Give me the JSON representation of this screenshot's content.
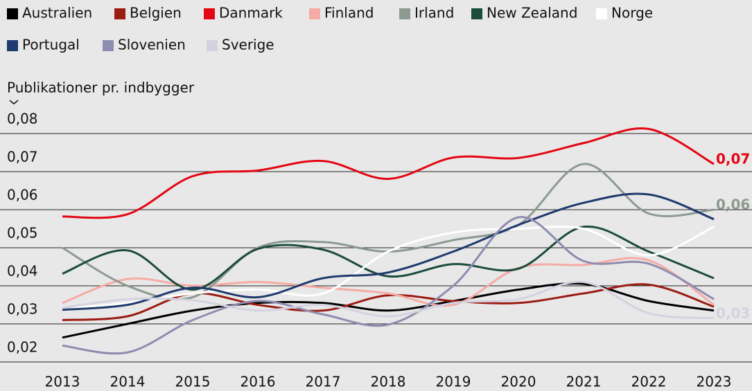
{
  "chart_data": {
    "type": "line",
    "y_axis_label": "Publikationer pr. indbygger",
    "categories": [
      "2013",
      "2014",
      "2015",
      "2016",
      "2017",
      "2018",
      "2019",
      "2020",
      "2021",
      "2022",
      "2023"
    ],
    "ylim": [
      0.02,
      0.08
    ],
    "yticks": [
      {
        "value": 0.02,
        "label": "0,02"
      },
      {
        "value": 0.03,
        "label": "0,03"
      },
      {
        "value": 0.04,
        "label": "0,04"
      },
      {
        "value": 0.05,
        "label": "0,05"
      },
      {
        "value": 0.06,
        "label": "0,06"
      },
      {
        "value": 0.07,
        "label": "0,07"
      },
      {
        "value": 0.08,
        "label": "0,08"
      }
    ],
    "grid": true,
    "series": [
      {
        "name": "Australien",
        "color": "#000000",
        "values": [
          0.0264,
          0.03,
          0.0335,
          0.0355,
          0.0355,
          0.0335,
          0.036,
          0.039,
          0.0405,
          0.036,
          0.0335
        ]
      },
      {
        "name": "Belgien",
        "color": "#9b1c13",
        "values": [
          0.031,
          0.032,
          0.038,
          0.035,
          0.0335,
          0.0375,
          0.036,
          0.0355,
          0.038,
          0.0403,
          0.0345
        ]
      },
      {
        "name": "Danmark",
        "color": "#e30613",
        "values": [
          0.0582,
          0.0588,
          0.0688,
          0.0703,
          0.0728,
          0.0681,
          0.0737,
          0.0736,
          0.0775,
          0.0812,
          0.072
        ],
        "end_label": "0,07"
      },
      {
        "name": "Finland",
        "color": "#f5aba4",
        "values": [
          0.0355,
          0.0418,
          0.04,
          0.041,
          0.0395,
          0.038,
          0.035,
          0.0447,
          0.0455,
          0.0467,
          0.035
        ]
      },
      {
        "name": "Irland",
        "color": "#8c9a90",
        "values": [
          0.05,
          0.04,
          0.037,
          0.05,
          0.0515,
          0.049,
          0.052,
          0.056,
          0.072,
          0.059,
          0.06
        ],
        "end_label": "0,06"
      },
      {
        "name": "New Zealand",
        "color": "#1c4c3c",
        "values": [
          0.0432,
          0.0493,
          0.039,
          0.0497,
          0.0495,
          0.0425,
          0.0457,
          0.0445,
          0.0555,
          0.049,
          0.042
        ]
      },
      {
        "name": "Norge",
        "color": "#ffffff",
        "values": [
          0.034,
          0.0355,
          0.038,
          0.039,
          0.038,
          0.049,
          0.054,
          0.055,
          0.055,
          0.048,
          0.0555
        ]
      },
      {
        "name": "Portugal",
        "color": "#1f3a6e",
        "values": [
          0.0337,
          0.035,
          0.0395,
          0.037,
          0.042,
          0.0435,
          0.049,
          0.056,
          0.0618,
          0.064,
          0.0575
        ]
      },
      {
        "name": "Slovenien",
        "color": "#8e8cb0",
        "values": [
          0.0243,
          0.0225,
          0.031,
          0.036,
          0.0325,
          0.0298,
          0.04,
          0.058,
          0.0465,
          0.0458,
          0.0365
        ]
      },
      {
        "name": "Sverige",
        "color": "#d4d2e0",
        "values": [
          0.0342,
          0.0365,
          0.0362,
          0.0335,
          0.035,
          0.032,
          0.0355,
          0.0365,
          0.041,
          0.0328,
          0.0315
        ],
        "end_label": "0,03"
      }
    ]
  }
}
